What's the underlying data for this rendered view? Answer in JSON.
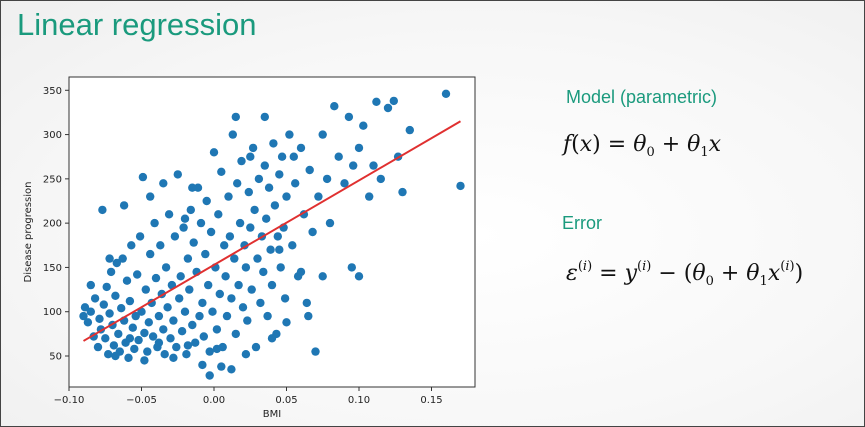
{
  "slide": {
    "title": "Linear regression",
    "model_label": "Model (parametric)",
    "error_label": "Error",
    "colors": {
      "accent": "#1a9a7d",
      "points": "#1f77b4",
      "fit_line": "#e03030"
    }
  },
  "chart_data": {
    "type": "scatter",
    "title": "",
    "xlabel": "BMI",
    "ylabel": "Disease progression",
    "xlim": [
      -0.1,
      0.18
    ],
    "ylim": [
      15,
      365
    ],
    "x_ticks": [
      -0.1,
      -0.05,
      0.0,
      0.05,
      0.1,
      0.15
    ],
    "x_tick_labels": [
      "−0.10",
      "−0.05",
      "0.00",
      "0.05",
      "0.10",
      "0.15"
    ],
    "y_ticks": [
      50,
      100,
      150,
      200,
      250,
      300,
      350
    ],
    "y_tick_labels": [
      "50",
      "100",
      "150",
      "200",
      "250",
      "300",
      "350"
    ],
    "grid": false,
    "fit_line": {
      "x": [
        -0.09,
        0.17
      ],
      "y": [
        67,
        315
      ]
    },
    "series": [
      {
        "points": [
          [
            -0.09,
            95
          ],
          [
            -0.089,
            105
          ],
          [
            -0.087,
            88
          ],
          [
            -0.085,
            100
          ],
          [
            -0.083,
            72
          ],
          [
            -0.082,
            115
          ],
          [
            -0.08,
            60
          ],
          [
            -0.079,
            92
          ],
          [
            -0.078,
            80
          ],
          [
            -0.077,
            215
          ],
          [
            -0.076,
            108
          ],
          [
            -0.075,
            70
          ],
          [
            -0.074,
            128
          ],
          [
            -0.073,
            52
          ],
          [
            -0.072,
            98
          ],
          [
            -0.071,
            145
          ],
          [
            -0.07,
            85
          ],
          [
            -0.069,
            62
          ],
          [
            -0.068,
            118
          ],
          [
            -0.067,
            155
          ],
          [
            -0.066,
            75
          ],
          [
            -0.065,
            55
          ],
          [
            -0.064,
            104
          ],
          [
            -0.063,
            160
          ],
          [
            -0.062,
            90
          ],
          [
            -0.061,
            65
          ],
          [
            -0.06,
            135
          ],
          [
            -0.059,
            48
          ],
          [
            -0.058,
            112
          ],
          [
            -0.057,
            175
          ],
          [
            -0.056,
            82
          ],
          [
            -0.055,
            58
          ],
          [
            -0.054,
            95
          ],
          [
            -0.053,
            142
          ],
          [
            -0.052,
            68
          ],
          [
            -0.051,
            185
          ],
          [
            -0.05,
            100
          ],
          [
            -0.049,
            252
          ],
          [
            -0.048,
            76
          ],
          [
            -0.047,
            125
          ],
          [
            -0.046,
            55
          ],
          [
            -0.045,
            88
          ],
          [
            -0.044,
            165
          ],
          [
            -0.043,
            110
          ],
          [
            -0.042,
            72
          ],
          [
            -0.041,
            200
          ],
          [
            -0.04,
            138
          ],
          [
            -0.039,
            60
          ],
          [
            -0.038,
            95
          ],
          [
            -0.037,
            175
          ],
          [
            -0.036,
            120
          ],
          [
            -0.035,
            80
          ],
          [
            -0.034,
            52
          ],
          [
            -0.033,
            150
          ],
          [
            -0.032,
            105
          ],
          [
            -0.031,
            210
          ],
          [
            -0.03,
            70
          ],
          [
            -0.029,
            130
          ],
          [
            -0.028,
            90
          ],
          [
            -0.027,
            185
          ],
          [
            -0.026,
            60
          ],
          [
            -0.025,
            255
          ],
          [
            -0.024,
            115
          ],
          [
            -0.023,
            140
          ],
          [
            -0.022,
            78
          ],
          [
            -0.021,
            195
          ],
          [
            -0.02,
            100
          ],
          [
            -0.019,
            52
          ],
          [
            -0.018,
            160
          ],
          [
            -0.017,
            125
          ],
          [
            -0.016,
            215
          ],
          [
            -0.015,
            85
          ],
          [
            -0.014,
            178
          ],
          [
            -0.013,
            65
          ],
          [
            -0.012,
            145
          ],
          [
            -0.011,
            240
          ],
          [
            -0.01,
            95
          ],
          [
            -0.009,
            200
          ],
          [
            -0.008,
            110
          ],
          [
            -0.007,
            72
          ],
          [
            -0.006,
            165
          ],
          [
            -0.005,
            225
          ],
          [
            -0.004,
            130
          ],
          [
            -0.003,
            55
          ],
          [
            -0.002,
            190
          ],
          [
            -0.001,
            100
          ],
          [
            0.0,
            280
          ],
          [
            0.001,
            150
          ],
          [
            0.002,
            80
          ],
          [
            0.003,
            210
          ],
          [
            0.004,
            120
          ],
          [
            0.005,
            258
          ],
          [
            0.006,
            60
          ],
          [
            0.007,
            175
          ],
          [
            0.008,
            140
          ],
          [
            0.009,
            95
          ],
          [
            0.01,
            230
          ],
          [
            0.011,
            185
          ],
          [
            0.012,
            115
          ],
          [
            0.013,
            300
          ],
          [
            0.014,
            160
          ],
          [
            0.015,
            75
          ],
          [
            0.016,
            245
          ],
          [
            0.017,
            130
          ],
          [
            0.018,
            200
          ],
          [
            0.019,
            270
          ],
          [
            0.02,
            105
          ],
          [
            0.021,
            175
          ],
          [
            0.022,
            150
          ],
          [
            0.023,
            90
          ],
          [
            0.024,
            235
          ],
          [
            0.025,
            195
          ],
          [
            0.026,
            125
          ],
          [
            0.027,
            285
          ],
          [
            0.028,
            215
          ],
          [
            0.029,
            60
          ],
          [
            0.03,
            160
          ],
          [
            0.031,
            250
          ],
          [
            0.032,
            110
          ],
          [
            0.033,
            185
          ],
          [
            0.034,
            145
          ],
          [
            0.035,
            265
          ],
          [
            0.036,
            205
          ],
          [
            0.037,
            95
          ],
          [
            0.038,
            240
          ],
          [
            0.039,
            170
          ],
          [
            0.04,
            130
          ],
          [
            0.041,
            290
          ],
          [
            0.042,
            220
          ],
          [
            0.043,
            75
          ],
          [
            0.044,
            185
          ],
          [
            0.045,
            255
          ],
          [
            0.046,
            150
          ],
          [
            0.047,
            275
          ],
          [
            0.048,
            195
          ],
          [
            0.049,
            115
          ],
          [
            0.05,
            230
          ],
          [
            0.052,
            300
          ],
          [
            0.054,
            175
          ],
          [
            0.056,
            245
          ],
          [
            0.058,
            140
          ],
          [
            0.06,
            285
          ],
          [
            0.062,
            210
          ],
          [
            0.064,
            110
          ],
          [
            0.066,
            260
          ],
          [
            0.068,
            190
          ],
          [
            0.07,
            55
          ],
          [
            0.072,
            230
          ],
          [
            0.075,
            300
          ],
          [
            0.078,
            250
          ],
          [
            0.08,
            200
          ],
          [
            0.083,
            332
          ],
          [
            0.086,
            275
          ],
          [
            0.09,
            245
          ],
          [
            0.093,
            320
          ],
          [
            0.096,
            265
          ],
          [
            0.1,
            140
          ],
          [
            0.1,
            285
          ],
          [
            0.103,
            310
          ],
          [
            0.107,
            230
          ],
          [
            0.11,
            265
          ],
          [
            0.112,
            337
          ],
          [
            0.115,
            250
          ],
          [
            0.12,
            330
          ],
          [
            0.124,
            338
          ],
          [
            0.127,
            275
          ],
          [
            0.13,
            235
          ],
          [
            0.135,
            305
          ],
          [
            0.16,
            346
          ],
          [
            0.17,
            242
          ],
          [
            -0.068,
            50
          ],
          [
            -0.058,
            70
          ],
          [
            -0.048,
            45
          ],
          [
            -0.038,
            65
          ],
          [
            -0.028,
            48
          ],
          [
            -0.018,
            62
          ],
          [
            -0.008,
            40
          ],
          [
            0.002,
            58
          ],
          [
            0.012,
            35
          ],
          [
            0.022,
            52
          ],
          [
            -0.003,
            28
          ],
          [
            0.005,
            38
          ],
          [
            -0.085,
            130
          ],
          [
            -0.062,
            220
          ],
          [
            -0.035,
            245
          ],
          [
            0.015,
            320
          ],
          [
            0.035,
            320
          ],
          [
            0.055,
            275
          ],
          [
            -0.02,
            205
          ],
          [
            0.045,
            170
          ],
          [
            0.06,
            145
          ],
          [
            0.065,
            95
          ],
          [
            0.075,
            140
          ],
          [
            -0.072,
            160
          ],
          [
            -0.044,
            230
          ],
          [
            0.025,
            275
          ],
          [
            0.095,
            150
          ],
          [
            0.04,
            70
          ],
          [
            0.05,
            88
          ],
          [
            -0.015,
            240
          ]
        ]
      }
    ]
  }
}
